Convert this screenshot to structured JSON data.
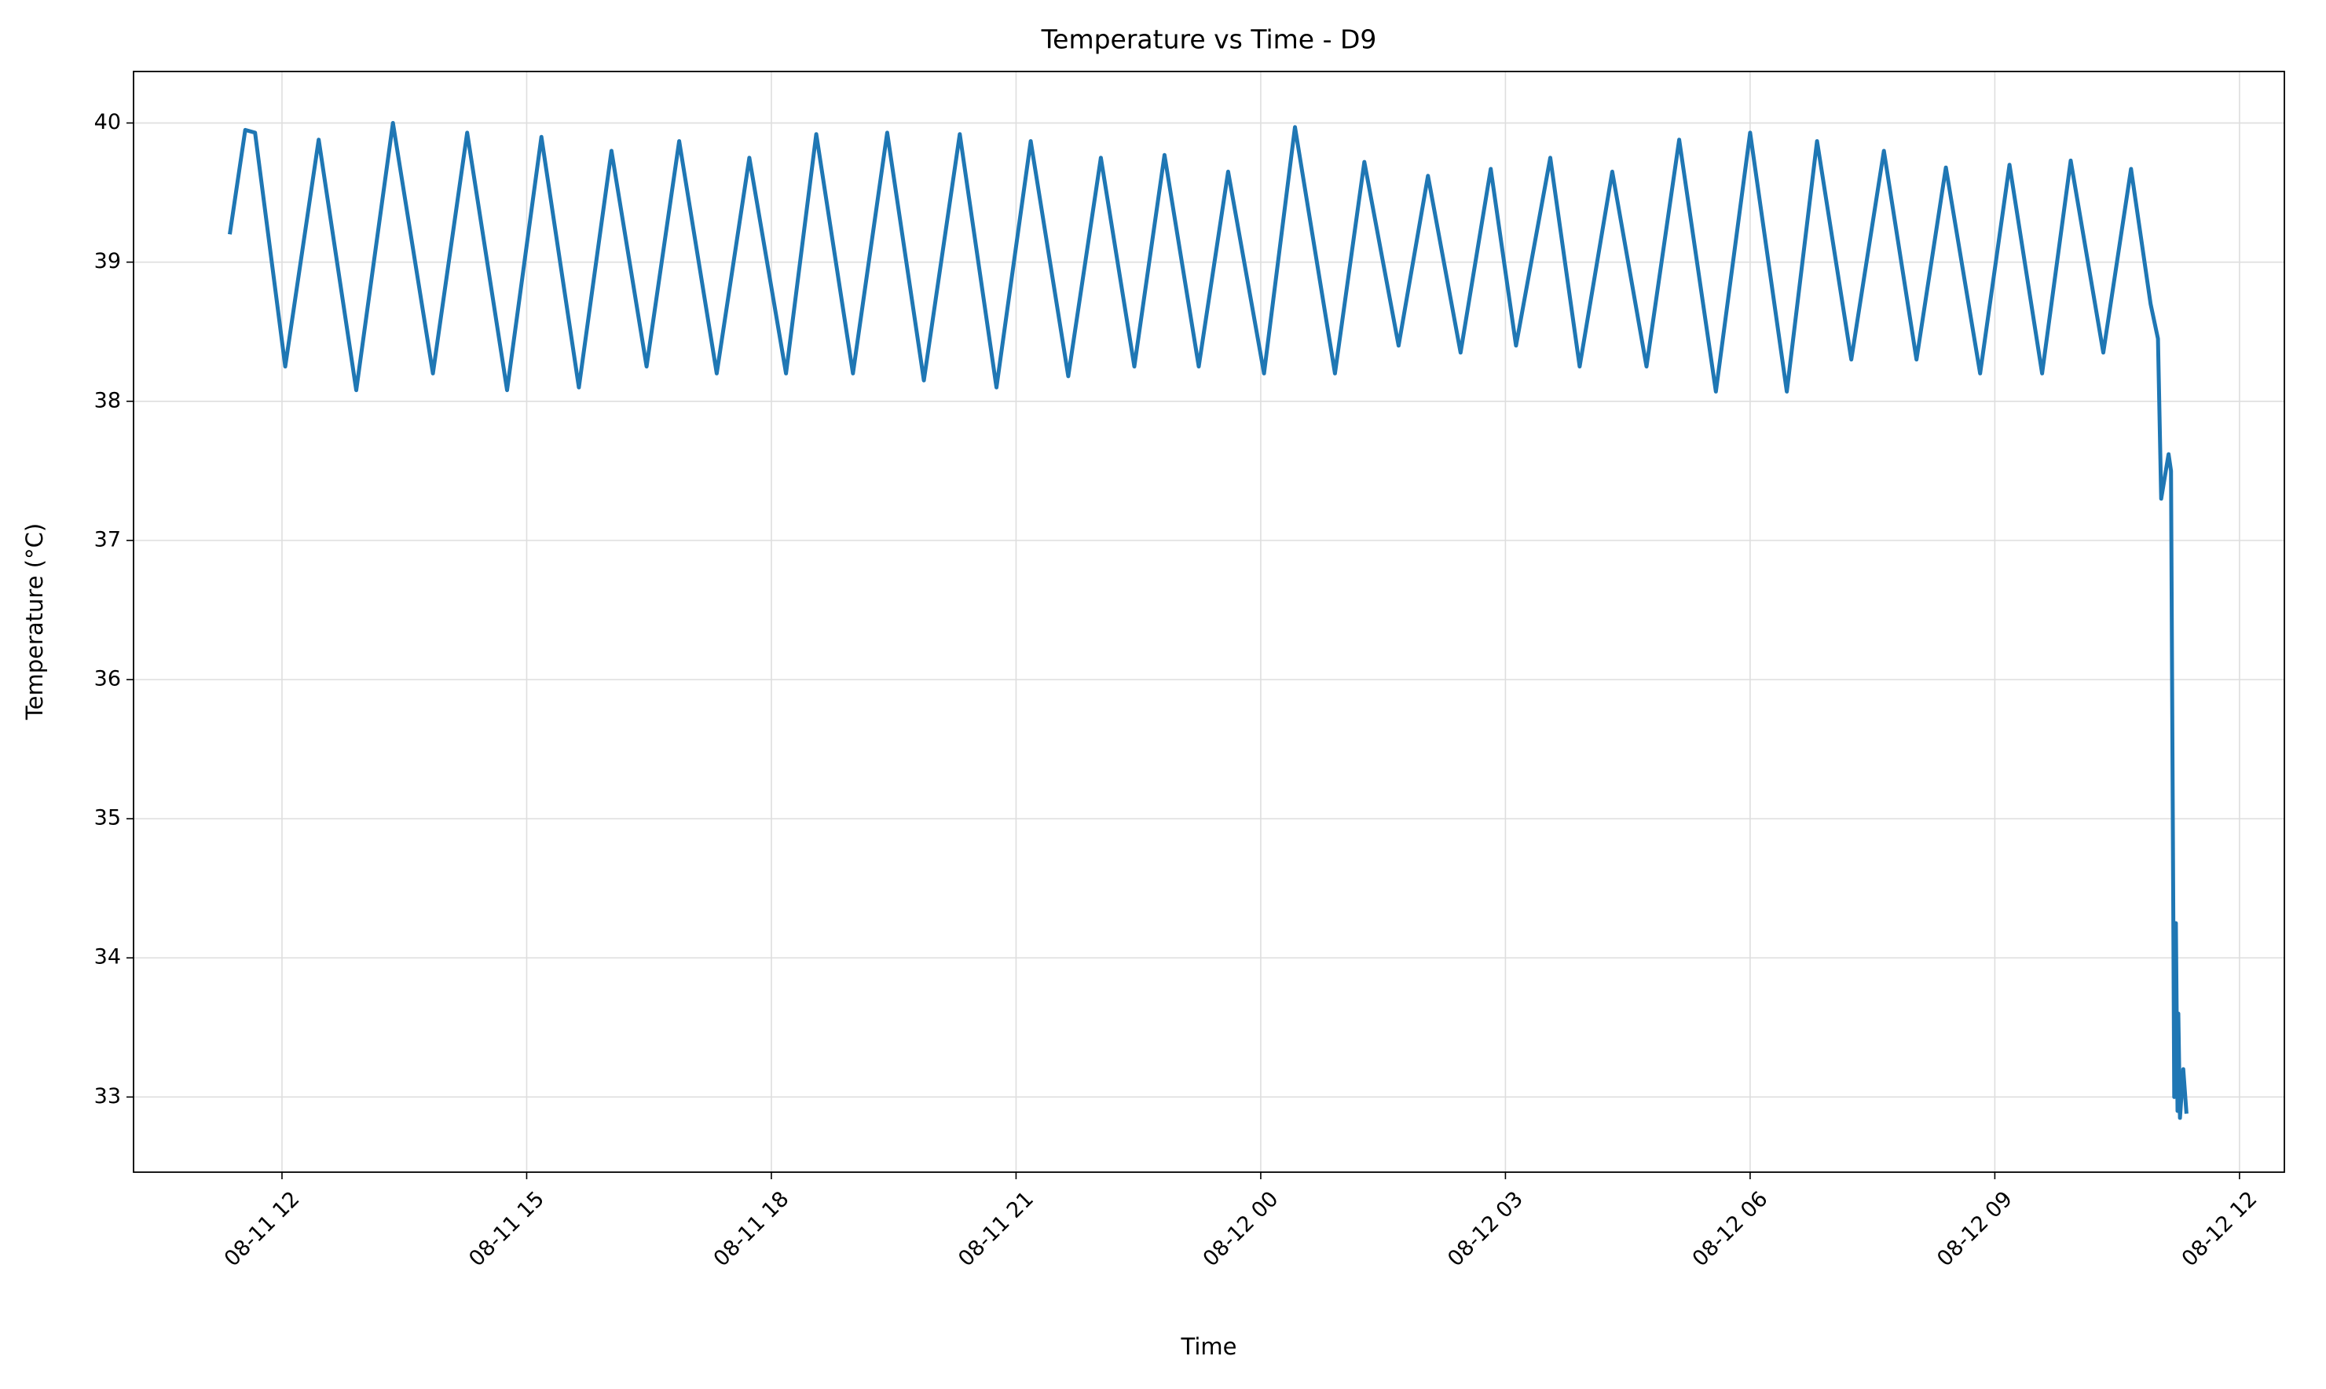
{
  "chart_data": {
    "type": "line",
    "title": "Temperature vs Time - D9",
    "xlabel": "Time",
    "ylabel": "Temperature (°C)",
    "x": [
      11.36,
      11.55,
      11.67,
      12.04,
      12.45,
      12.91,
      13.36,
      13.85,
      14.27,
      14.76,
      15.18,
      15.64,
      16.04,
      16.47,
      16.87,
      17.33,
      17.73,
      18.18,
      18.55,
      19.0,
      19.42,
      19.87,
      20.31,
      20.76,
      21.18,
      21.64,
      22.04,
      22.45,
      22.82,
      23.24,
      23.6,
      24.04,
      24.42,
      24.91,
      25.27,
      25.69,
      26.05,
      26.45,
      26.82,
      27.13,
      27.55,
      27.91,
      28.31,
      28.73,
      29.13,
      29.58,
      30.0,
      30.45,
      30.82,
      31.24,
      31.64,
      32.04,
      32.4,
      32.82,
      33.18,
      33.58,
      33.93,
      34.33,
      34.67,
      34.91,
      35.0,
      35.04,
      35.13,
      35.16,
      35.2,
      35.22,
      35.24,
      35.25,
      35.27,
      35.31,
      35.35
    ],
    "series": [
      {
        "name": "D9",
        "color": "#1f77b4",
        "values": [
          39.2,
          39.95,
          39.93,
          38.25,
          39.88,
          38.08,
          40.0,
          38.2,
          39.93,
          38.08,
          39.9,
          38.1,
          39.8,
          38.25,
          39.87,
          38.2,
          39.75,
          38.2,
          39.92,
          38.2,
          39.93,
          38.15,
          39.92,
          38.1,
          39.87,
          38.18,
          39.75,
          38.25,
          39.77,
          38.25,
          39.65,
          38.2,
          39.97,
          38.2,
          39.72,
          38.4,
          39.62,
          38.35,
          39.67,
          38.4,
          39.75,
          38.25,
          39.65,
          38.25,
          39.88,
          38.07,
          39.93,
          38.07,
          39.87,
          38.3,
          39.8,
          38.3,
          39.68,
          38.2,
          39.7,
          38.2,
          39.73,
          38.35,
          39.67,
          38.7,
          38.45,
          37.3,
          37.62,
          37.5,
          33.0,
          34.25,
          32.9,
          33.6,
          32.85,
          33.2,
          32.88
        ]
      }
    ],
    "xlim": [
      10.18,
      36.55
    ],
    "xticks": [
      {
        "value": 12,
        "label": "08-11 12"
      },
      {
        "value": 15,
        "label": "08-11 15"
      },
      {
        "value": 18,
        "label": "08-11 18"
      },
      {
        "value": 21,
        "label": "08-11 21"
      },
      {
        "value": 24,
        "label": "08-12 00"
      },
      {
        "value": 27,
        "label": "08-12 03"
      },
      {
        "value": 30,
        "label": "08-12 06"
      },
      {
        "value": 33,
        "label": "08-12 09"
      },
      {
        "value": 36,
        "label": "08-12 12"
      }
    ],
    "ylim": [
      32.46,
      40.37
    ],
    "yticks": [
      33,
      34,
      35,
      36,
      37,
      38,
      39,
      40
    ],
    "grid": true
  }
}
